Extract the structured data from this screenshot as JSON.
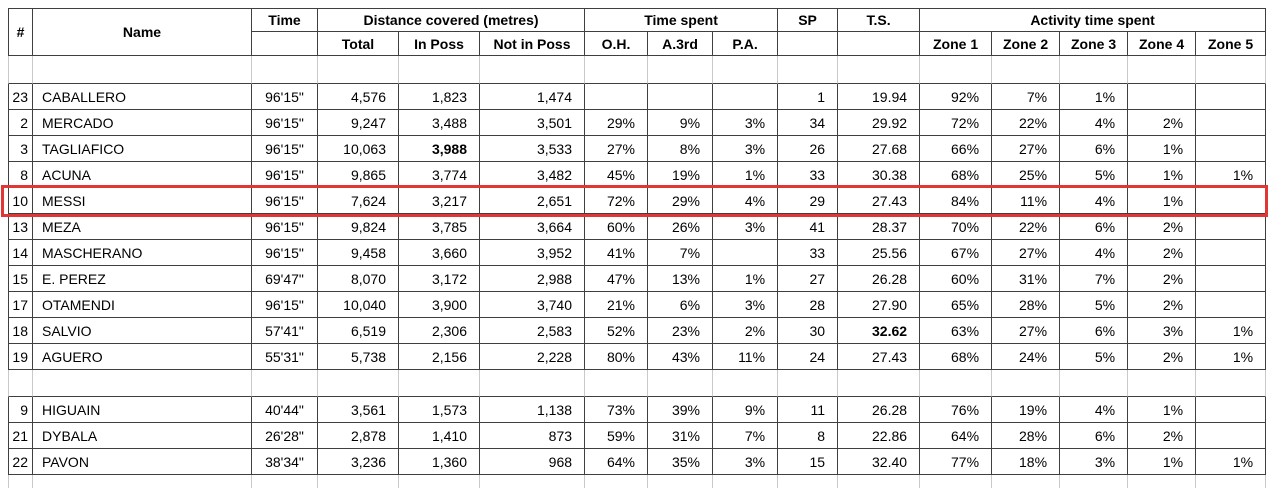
{
  "colors": {
    "highlight_border": "#e23535",
    "grid_dark": "#3f3f3f",
    "grid_light": "#c9c9c9",
    "background": "#ffffff",
    "text": "#000000"
  },
  "header": {
    "col_num": "#",
    "name": "Name",
    "time": "Time",
    "groups": {
      "distance": "Distance covered (metres)",
      "time_spent": "Time spent",
      "activity": "Activity time spent"
    },
    "sub": {
      "total": "Total",
      "in_poss": "In Poss",
      "not_in_poss": "Not in Poss",
      "oh": "O.H.",
      "a3rd": "A.3rd",
      "pa": "P.A."
    },
    "sp": "SP",
    "ts": "T.S.",
    "zones": [
      "Zone 1",
      "Zone 2",
      "Zone 3",
      "Zone 4",
      "Zone 5"
    ]
  },
  "table": {
    "rows": [
      {
        "type": "spacer-top"
      },
      {
        "type": "data",
        "cells": [
          "23",
          "CABALLERO",
          "96'15\"",
          "4,576",
          "1,823",
          "1,474",
          "",
          "",
          "",
          "1",
          "19.94",
          "92%",
          "7%",
          "1%",
          "",
          ""
        ]
      },
      {
        "type": "data",
        "cells": [
          "2",
          "MERCADO",
          "96'15\"",
          "9,247",
          "3,488",
          "3,501",
          "29%",
          "9%",
          "3%",
          "34",
          "29.92",
          "72%",
          "22%",
          "4%",
          "2%",
          ""
        ]
      },
      {
        "type": "data",
        "cells": [
          "3",
          "TAGLIAFICO",
          "96'15\"",
          "10,063",
          "3,988",
          "3,533",
          "27%",
          "8%",
          "3%",
          "26",
          "27.68",
          "66%",
          "27%",
          "6%",
          "1%",
          ""
        ],
        "bold": [
          4
        ]
      },
      {
        "type": "data",
        "cells": [
          "8",
          "ACUNA",
          "96'15\"",
          "9,865",
          "3,774",
          "3,482",
          "45%",
          "19%",
          "1%",
          "33",
          "30.38",
          "68%",
          "25%",
          "5%",
          "1%",
          "1%"
        ]
      },
      {
        "type": "data",
        "highlight": true,
        "cells": [
          "10",
          "MESSI",
          "96'15\"",
          "7,624",
          "3,217",
          "2,651",
          "72%",
          "29%",
          "4%",
          "29",
          "27.43",
          "84%",
          "11%",
          "4%",
          "1%",
          ""
        ]
      },
      {
        "type": "data",
        "cells": [
          "13",
          "MEZA",
          "96'15\"",
          "9,824",
          "3,785",
          "3,664",
          "60%",
          "26%",
          "3%",
          "41",
          "28.37",
          "70%",
          "22%",
          "6%",
          "2%",
          ""
        ]
      },
      {
        "type": "data",
        "cells": [
          "14",
          "MASCHERANO",
          "96'15\"",
          "9,458",
          "3,660",
          "3,952",
          "41%",
          "7%",
          "",
          "33",
          "25.56",
          "67%",
          "27%",
          "4%",
          "2%",
          ""
        ]
      },
      {
        "type": "data",
        "cells": [
          "15",
          "E. PEREZ",
          "69'47\"",
          "8,070",
          "3,172",
          "2,988",
          "47%",
          "13%",
          "1%",
          "27",
          "26.28",
          "60%",
          "31%",
          "7%",
          "2%",
          ""
        ]
      },
      {
        "type": "data",
        "cells": [
          "17",
          "OTAMENDI",
          "96'15\"",
          "10,040",
          "3,900",
          "3,740",
          "21%",
          "6%",
          "3%",
          "28",
          "27.90",
          "65%",
          "28%",
          "5%",
          "2%",
          ""
        ]
      },
      {
        "type": "data",
        "cells": [
          "18",
          "SALVIO",
          "57'41\"",
          "6,519",
          "2,306",
          "2,583",
          "52%",
          "23%",
          "2%",
          "30",
          "32.62",
          "63%",
          "27%",
          "6%",
          "3%",
          "1%"
        ],
        "bold": [
          10
        ]
      },
      {
        "type": "data",
        "cells": [
          "19",
          "AGUERO",
          "55'31\"",
          "5,738",
          "2,156",
          "2,228",
          "80%",
          "43%",
          "11%",
          "24",
          "27.43",
          "68%",
          "24%",
          "5%",
          "2%",
          "1%"
        ]
      },
      {
        "type": "spacer-mid"
      },
      {
        "type": "data",
        "cells": [
          "9",
          "HIGUAIN",
          "40'44\"",
          "3,561",
          "1,573",
          "1,138",
          "73%",
          "39%",
          "9%",
          "11",
          "26.28",
          "76%",
          "19%",
          "4%",
          "1%",
          ""
        ]
      },
      {
        "type": "data",
        "cells": [
          "21",
          "DYBALA",
          "26'28\"",
          "2,878",
          "1,410",
          "873",
          "59%",
          "31%",
          "7%",
          "8",
          "22.86",
          "64%",
          "28%",
          "6%",
          "2%",
          ""
        ]
      },
      {
        "type": "data",
        "cells": [
          "22",
          "PAVON",
          "38'34\"",
          "3,236",
          "1,360",
          "968",
          "64%",
          "35%",
          "3%",
          "15",
          "32.40",
          "77%",
          "18%",
          "3%",
          "1%",
          "1%"
        ]
      },
      {
        "type": "spacer-end"
      }
    ]
  }
}
